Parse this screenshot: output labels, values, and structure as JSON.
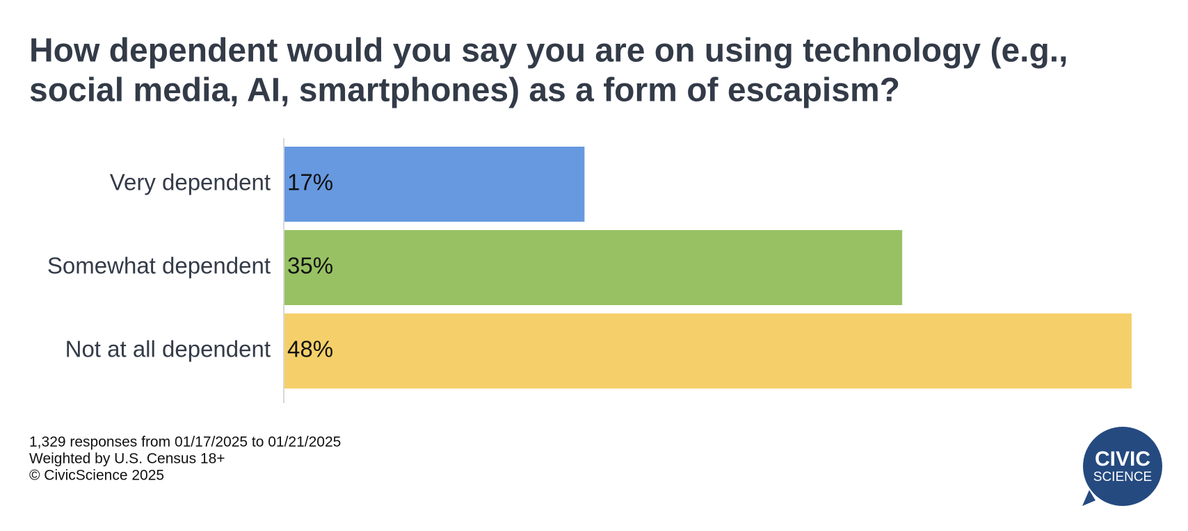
{
  "chart_data": {
    "type": "bar",
    "title": [
      "How dependent would you say you are on using technology (e.g.,",
      "social media, AI, smartphones) as a form of escapism?"
    ],
    "categories": [
      "Very dependent",
      "Somewhat dependent",
      "Not at all dependent"
    ],
    "values": [
      17,
      35,
      48
    ],
    "value_labels": [
      "17%",
      "35%",
      "48%"
    ],
    "colors": [
      "#6799e0",
      "#98c164",
      "#f5d06a"
    ],
    "notes": [
      "1,329 responses from 01/17/2025 to 01/21/2025",
      "Weighted by U.S. Census 18+",
      "© CivicScience 2025"
    ],
    "logo": [
      "CIVIC",
      "SCIENCE"
    ]
  }
}
